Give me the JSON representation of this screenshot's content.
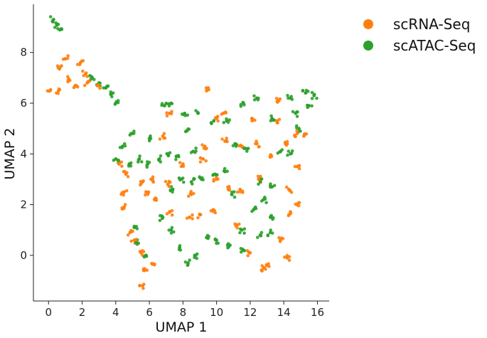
{
  "chart_data": {
    "type": "scatter",
    "xlabel": "UMAP 1",
    "ylabel": "UMAP 2",
    "xlim": [
      -0.9,
      16.7
    ],
    "ylim": [
      -1.8,
      9.9
    ],
    "xticks": [
      0,
      2,
      4,
      6,
      8,
      10,
      12,
      14,
      16
    ],
    "yticks": [
      0,
      2,
      4,
      6,
      8
    ],
    "grid": false,
    "legend_position": "outside-top-right",
    "series": [
      {
        "name": "scRNA-Seq",
        "color": "#ff7f0e",
        "points": [
          [
            -0.1,
            6.7
          ],
          [
            0.1,
            6.5
          ],
          [
            0.4,
            6.45
          ],
          [
            0.6,
            6.5
          ],
          [
            0.5,
            7.1
          ],
          [
            0.65,
            7.35
          ],
          [
            0.8,
            7.7
          ],
          [
            1.0,
            7.75
          ],
          [
            0.95,
            7.45
          ],
          [
            1.2,
            6.95
          ],
          [
            1.4,
            6.95
          ],
          [
            1.9,
            7.6
          ],
          [
            2.0,
            7.5
          ],
          [
            2.2,
            7.15
          ],
          [
            2.4,
            7.1
          ],
          [
            2.3,
            6.8
          ],
          [
            2.6,
            6.7
          ],
          [
            2.9,
            6.7
          ],
          [
            3.1,
            6.55
          ],
          [
            1.6,
            6.7
          ],
          [
            9.5,
            6.8
          ],
          [
            9.5,
            6.6
          ],
          [
            4.0,
            4.2
          ],
          [
            4.2,
            3.6
          ],
          [
            4.4,
            3.3
          ],
          [
            4.6,
            3.2
          ],
          [
            4.8,
            3.0
          ],
          [
            4.5,
            2.5
          ],
          [
            4.6,
            2.2
          ],
          [
            4.5,
            1.9
          ],
          [
            4.7,
            1.2
          ],
          [
            4.85,
            0.9
          ],
          [
            5.0,
            0.7
          ],
          [
            5.1,
            0.6
          ],
          [
            5.3,
            0.4
          ],
          [
            5.5,
            0.1
          ],
          [
            5.6,
            -0.3
          ],
          [
            5.7,
            -0.6
          ],
          [
            5.8,
            -0.9
          ],
          [
            5.6,
            -1.2
          ],
          [
            6.1,
            -0.5
          ],
          [
            6.3,
            -0.35
          ],
          [
            5.3,
            2.6
          ],
          [
            5.6,
            2.9
          ],
          [
            5.9,
            2.8
          ],
          [
            6.1,
            3.0
          ],
          [
            6.4,
            2.5
          ],
          [
            6.3,
            2.2
          ],
          [
            6.0,
            2.0
          ],
          [
            5.8,
            2.5
          ],
          [
            7.0,
            5.8
          ],
          [
            7.2,
            5.6
          ],
          [
            7.4,
            5.4
          ],
          [
            6.8,
            4.7
          ],
          [
            7.3,
            3.3
          ],
          [
            7.1,
            2.8
          ],
          [
            7.5,
            2.1
          ],
          [
            7.2,
            1.7
          ],
          [
            8.0,
            1.9
          ],
          [
            8.4,
            1.5
          ],
          [
            8.8,
            1.2
          ],
          [
            9.0,
            1.6
          ],
          [
            9.4,
            1.4
          ],
          [
            9.8,
            1.8
          ],
          [
            8.6,
            0.9
          ],
          [
            9.2,
            3.8
          ],
          [
            9.6,
            3.4
          ],
          [
            10.0,
            3.0
          ],
          [
            10.3,
            2.2
          ],
          [
            10.7,
            2.6
          ],
          [
            11.0,
            3.4
          ],
          [
            10.5,
            4.5
          ],
          [
            9.8,
            4.8
          ],
          [
            9.3,
            4.3
          ],
          [
            11.2,
            3.9
          ],
          [
            11.5,
            4.3
          ],
          [
            11.8,
            3.9
          ],
          [
            11.4,
            2.6
          ],
          [
            11.7,
            1.8
          ],
          [
            11.2,
            1.2
          ],
          [
            11.7,
            0.6
          ],
          [
            12.0,
            0.1
          ],
          [
            12.2,
            3.4
          ],
          [
            12.5,
            3.0
          ],
          [
            12.8,
            3.6
          ],
          [
            12.4,
            4.4
          ],
          [
            12.7,
            5.1
          ],
          [
            12.1,
            5.4
          ],
          [
            12.0,
            5.0
          ],
          [
            13.0,
            -0.4
          ],
          [
            13.3,
            -0.2
          ],
          [
            12.8,
            -0.5
          ],
          [
            13.5,
            0.2
          ],
          [
            13.8,
            0.6
          ],
          [
            13.9,
            0.0
          ],
          [
            14.2,
            -0.1
          ],
          [
            14.0,
            1.2
          ],
          [
            14.3,
            1.6
          ],
          [
            14.0,
            2.1
          ],
          [
            14.3,
            2.6
          ],
          [
            14.6,
            3.0
          ],
          [
            14.8,
            3.5
          ],
          [
            14.5,
            3.9
          ],
          [
            14.1,
            4.4
          ],
          [
            14.5,
            4.9
          ],
          [
            14.8,
            4.8
          ],
          [
            15.0,
            4.3
          ],
          [
            15.2,
            4.7
          ],
          [
            15.1,
            2.6
          ],
          [
            14.8,
            2.0
          ],
          [
            13.5,
            2.9
          ],
          [
            13.2,
            3.9
          ],
          [
            13.4,
            4.6
          ],
          [
            13.6,
            5.3
          ],
          [
            13.9,
            5.6
          ],
          [
            13.7,
            6.1
          ],
          [
            14.4,
            5.9
          ],
          [
            10.4,
            5.6
          ],
          [
            11.0,
            5.2
          ],
          [
            10.0,
            5.4
          ],
          [
            8.6,
            4.6
          ],
          [
            8.0,
            3.6
          ],
          [
            7.7,
            2.6
          ],
          [
            8.5,
            2.4
          ]
        ]
      },
      {
        "name": "scATAC-Seq",
        "color": "#2ca02c",
        "points": [
          [
            0.3,
            9.3
          ],
          [
            0.4,
            9.2
          ],
          [
            0.5,
            9.1
          ],
          [
            0.6,
            9.0
          ],
          [
            0.7,
            8.9
          ],
          [
            0.8,
            8.85
          ],
          [
            2.6,
            7.0
          ],
          [
            2.8,
            6.9
          ],
          [
            3.0,
            6.8
          ],
          [
            3.2,
            6.7
          ],
          [
            3.4,
            6.6
          ],
          [
            3.6,
            6.5
          ],
          [
            3.7,
            6.35
          ],
          [
            3.9,
            6.2
          ],
          [
            4.0,
            6.0
          ],
          [
            3.9,
            4.0
          ],
          [
            4.0,
            3.8
          ],
          [
            4.2,
            4.1
          ],
          [
            4.4,
            4.3
          ],
          [
            4.7,
            4.6
          ],
          [
            5.0,
            4.8
          ],
          [
            4.6,
            3.9
          ],
          [
            4.8,
            3.6
          ],
          [
            5.1,
            3.3
          ],
          [
            5.4,
            3.8
          ],
          [
            5.7,
            4.1
          ],
          [
            6.0,
            4.6
          ],
          [
            6.3,
            4.3
          ],
          [
            6.6,
            3.8
          ],
          [
            6.9,
            3.5
          ],
          [
            7.1,
            4.0
          ],
          [
            7.4,
            4.3
          ],
          [
            7.6,
            3.9
          ],
          [
            5.0,
            1.4
          ],
          [
            5.1,
            1.1
          ],
          [
            4.9,
            0.8
          ],
          [
            5.2,
            0.5
          ],
          [
            5.5,
            0.2
          ],
          [
            5.8,
            0.0
          ],
          [
            6.0,
            0.3
          ],
          [
            6.9,
            5.9
          ],
          [
            7.2,
            5.8
          ],
          [
            7.3,
            6.0
          ],
          [
            6.9,
            5.4
          ],
          [
            8.1,
            5.6
          ],
          [
            8.6,
            5.5
          ],
          [
            8.9,
            5.6
          ],
          [
            9.3,
            5.5
          ],
          [
            9.7,
            5.2
          ],
          [
            10.1,
            5.6
          ],
          [
            10.6,
            5.3
          ],
          [
            11.1,
            5.9
          ],
          [
            11.6,
            6.0
          ],
          [
            12.0,
            5.9
          ],
          [
            12.4,
            6.2
          ],
          [
            12.9,
            5.8
          ],
          [
            13.3,
            5.4
          ],
          [
            14.1,
            6.3
          ],
          [
            14.4,
            6.2
          ],
          [
            14.9,
            6.4
          ],
          [
            15.3,
            6.4
          ],
          [
            15.6,
            6.5
          ],
          [
            15.8,
            6.3
          ],
          [
            15.9,
            6.2
          ],
          [
            15.5,
            5.9
          ],
          [
            15.1,
            6.1
          ],
          [
            14.7,
            5.6
          ],
          [
            15.0,
            5.4
          ],
          [
            14.9,
            5.0
          ],
          [
            15.3,
            5.2
          ],
          [
            7.9,
            3.0
          ],
          [
            8.2,
            3.4
          ],
          [
            8.5,
            2.9
          ],
          [
            8.8,
            3.5
          ],
          [
            9.1,
            3.0
          ],
          [
            9.5,
            2.6
          ],
          [
            9.9,
            3.2
          ],
          [
            10.2,
            3.7
          ],
          [
            10.5,
            3.3
          ],
          [
            10.8,
            3.9
          ],
          [
            11.1,
            4.4
          ],
          [
            9.0,
            4.0
          ],
          [
            8.6,
            4.1
          ],
          [
            8.3,
            3.8
          ],
          [
            7.3,
            1.0
          ],
          [
            7.6,
            0.7
          ],
          [
            7.8,
            0.3
          ],
          [
            8.0,
            -0.1
          ],
          [
            8.3,
            -0.3
          ],
          [
            8.5,
            -0.4
          ],
          [
            8.7,
            0.0
          ],
          [
            9.0,
            0.4
          ],
          [
            9.4,
            0.7
          ],
          [
            9.7,
            0.3
          ],
          [
            10.0,
            0.6
          ],
          [
            10.4,
            0.9
          ],
          [
            10.8,
            0.4
          ],
          [
            11.2,
            0.0
          ],
          [
            11.6,
            0.2
          ],
          [
            11.9,
            1.3
          ],
          [
            12.2,
            1.8
          ],
          [
            12.5,
            1.4
          ],
          [
            12.8,
            2.2
          ],
          [
            13.1,
            1.9
          ],
          [
            12.6,
            0.8
          ],
          [
            12.9,
            0.5
          ],
          [
            13.2,
            0.9
          ],
          [
            12.3,
            2.6
          ],
          [
            12.6,
            2.9
          ],
          [
            12.9,
            3.3
          ],
          [
            13.3,
            2.7
          ],
          [
            13.6,
            2.3
          ],
          [
            13.2,
            1.5
          ],
          [
            13.5,
            3.6
          ],
          [
            13.8,
            4.1
          ],
          [
            14.2,
            4.6
          ],
          [
            14.4,
            4.0
          ],
          [
            12.0,
            4.6
          ],
          [
            11.8,
            4.2
          ],
          [
            12.3,
            5.0
          ],
          [
            11.5,
            1.0
          ],
          [
            11.3,
            1.8
          ],
          [
            10.9,
            2.4
          ],
          [
            6.5,
            1.8
          ],
          [
            6.8,
            1.5
          ],
          [
            7.0,
            2.2
          ],
          [
            7.4,
            2.6
          ],
          [
            6.2,
            3.3
          ],
          [
            5.9,
            3.6
          ],
          [
            7.9,
            4.7
          ],
          [
            8.2,
            4.9
          ]
        ]
      }
    ]
  }
}
